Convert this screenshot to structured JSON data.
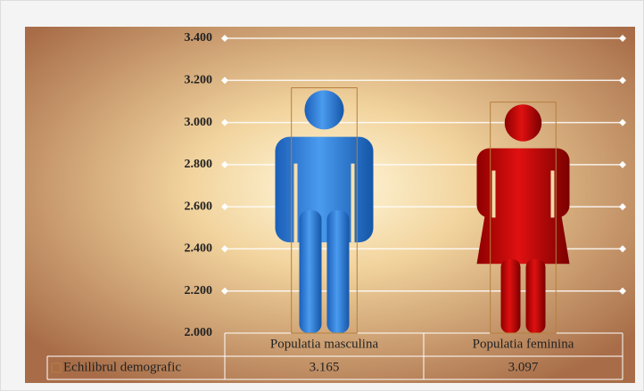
{
  "chart_data": {
    "type": "bar",
    "categories": [
      "Populatia masculina",
      "Populatia feminina"
    ],
    "series": [
      {
        "name": "Echilibrul demografic",
        "color": "#b5803f",
        "values": [
          3.165,
          3.097
        ]
      }
    ],
    "ylim": [
      2,
      3.4
    ],
    "yticks": [
      {
        "value": 2,
        "label": "2.000"
      },
      {
        "value": 2.2,
        "label": "2.200"
      },
      {
        "value": 2.4,
        "label": "2.400"
      },
      {
        "value": 2.6,
        "label": "2.600"
      },
      {
        "value": 2.8,
        "label": "2.800"
      },
      {
        "value": 3,
        "label": "3.000"
      },
      {
        "value": 3.2,
        "label": "3.200"
      },
      {
        "value": 3.4,
        "label": "3.400"
      }
    ],
    "grid": true,
    "data_table": true
  }
}
